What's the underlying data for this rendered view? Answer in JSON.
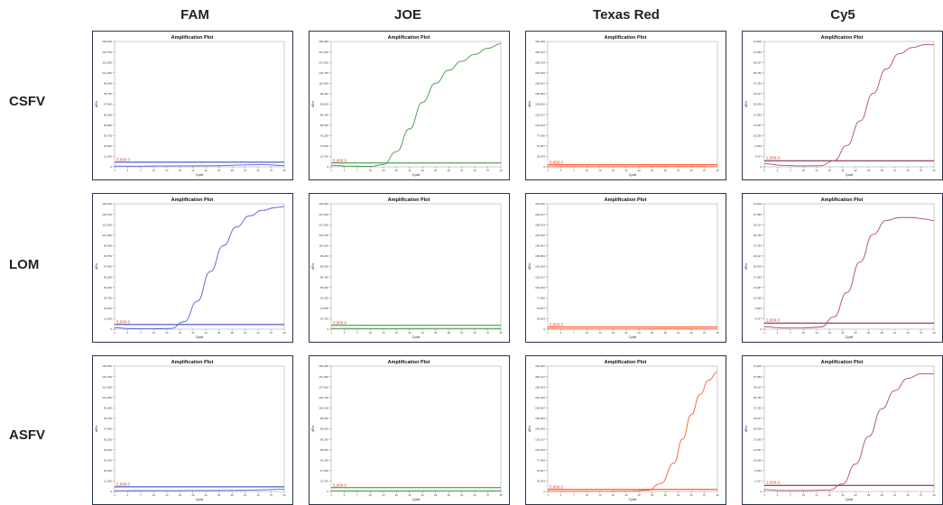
{
  "columns": [
    "FAM",
    "JOE",
    "Texas Red",
    "Cy5"
  ],
  "rows": [
    "CSFV",
    "LOM",
    "ASFV"
  ],
  "colors": {
    "FAM": "#5b5bd6",
    "JOE": "#3f9a3f",
    "Texas Red": "#ff5a36",
    "Cy5": "#b14a6a",
    "threshold_label": "#e03a1a",
    "baseline_blue": "#2233cc",
    "baseline_green": "#2e8b2e",
    "baseline_red": "#ff3300",
    "baseline_cy5": "#7a1030"
  },
  "chart_data": [
    {
      "type": "line",
      "title": "Amplification Plot",
      "row": "CSFV",
      "channel": "FAM",
      "xlabel": "Cycle",
      "ylabel": "ΔRn",
      "threshold_label": "5,000.0",
      "threshold": 5000,
      "ylim": [
        0,
        135000
      ],
      "amplified": false,
      "x": [
        1,
        5,
        10,
        15,
        20,
        25,
        30,
        35,
        40
      ],
      "y": [
        800,
        700,
        900,
        1000,
        1100,
        1200,
        2000,
        2400,
        1500
      ]
    },
    {
      "type": "line",
      "title": "Amplification Plot",
      "row": "CSFV",
      "channel": "JOE",
      "xlabel": "Cycle",
      "ylabel": "ΔRn",
      "threshold_label": "5,000.0",
      "threshold": 5000,
      "ylim": [
        0,
        165000
      ],
      "amplified": true,
      "x": [
        1,
        5,
        10,
        13,
        16,
        19,
        22,
        25,
        28,
        31,
        34,
        37,
        40
      ],
      "y": [
        2000,
        1000,
        500,
        3000,
        20000,
        50000,
        85000,
        110000,
        127000,
        139000,
        148000,
        156000,
        162000
      ]
    },
    {
      "type": "line",
      "title": "Amplification Plot",
      "row": "CSFV",
      "channel": "Texas Red",
      "xlabel": "Cycle",
      "ylabel": "ΔRn",
      "threshold_label": "5,000.0",
      "threshold": 5000,
      "ylim": [
        0,
        310000
      ],
      "amplified": false,
      "x": [
        1,
        10,
        20,
        30,
        40
      ],
      "y": [
        500,
        400,
        500,
        600,
        500
      ]
    },
    {
      "type": "line",
      "title": "Amplification Plot",
      "row": "CSFV",
      "channel": "Cy5",
      "xlabel": "Cycle",
      "ylabel": "ΔRn",
      "threshold_label": "2,000.0",
      "threshold": 2000,
      "ylim": [
        0,
        41000
      ],
      "amplified": true,
      "x": [
        1,
        5,
        10,
        14,
        17,
        20,
        23,
        26,
        29,
        32,
        35,
        38,
        40
      ],
      "y": [
        1000,
        500,
        300,
        400,
        2000,
        7000,
        15000,
        24000,
        32000,
        37000,
        39000,
        40000,
        40000
      ]
    },
    {
      "type": "line",
      "title": "Amplification Plot",
      "row": "LOM",
      "channel": "FAM",
      "xlabel": "Cycle",
      "ylabel": "ΔRn",
      "threshold_label": "5,000.0",
      "threshold": 5000,
      "ylim": [
        0,
        135000
      ],
      "amplified": true,
      "x": [
        1,
        5,
        10,
        14,
        17,
        20,
        23,
        26,
        29,
        32,
        35,
        38,
        40
      ],
      "y": [
        1500,
        600,
        400,
        800,
        8000,
        30000,
        62000,
        90000,
        110000,
        122000,
        128000,
        131000,
        132000
      ]
    },
    {
      "type": "line",
      "title": "Amplification Plot",
      "row": "LOM",
      "channel": "JOE",
      "xlabel": "Cycle",
      "ylabel": "ΔRn",
      "threshold_label": "5,000.0",
      "threshold": 5000,
      "ylim": [
        0,
        165000
      ],
      "amplified": false,
      "x": [
        1,
        10,
        20,
        30,
        40
      ],
      "y": [
        1000,
        800,
        900,
        1000,
        900
      ]
    },
    {
      "type": "line",
      "title": "Amplification Plot",
      "row": "LOM",
      "channel": "Texas Red",
      "xlabel": "Cycle",
      "ylabel": "ΔRn",
      "threshold_label": "5,000.0",
      "threshold": 5000,
      "ylim": [
        0,
        310000
      ],
      "amplified": false,
      "x": [
        1,
        10,
        20,
        30,
        40
      ],
      "y": [
        500,
        400,
        500,
        600,
        500
      ]
    },
    {
      "type": "line",
      "title": "Amplification Plot",
      "row": "LOM",
      "channel": "Cy5",
      "xlabel": "Cycle",
      "ylabel": "ΔRn",
      "threshold_label": "2,000.0",
      "threshold": 2000,
      "ylim": [
        0,
        41000
      ],
      "amplified": true,
      "x": [
        1,
        5,
        10,
        14,
        17,
        20,
        23,
        26,
        29,
        32,
        35,
        38,
        40
      ],
      "y": [
        800,
        400,
        400,
        700,
        4000,
        12000,
        22000,
        31000,
        35500,
        36500,
        36500,
        36000,
        35500
      ]
    },
    {
      "type": "line",
      "title": "Amplification Plot",
      "row": "ASFV",
      "channel": "FAM",
      "xlabel": "Cycle",
      "ylabel": "ΔRn",
      "threshold_label": "5,000.0",
      "threshold": 5000,
      "ylim": [
        0,
        135000
      ],
      "amplified": false,
      "x": [
        1,
        10,
        20,
        30,
        35,
        40
      ],
      "y": [
        800,
        900,
        1000,
        1200,
        1800,
        2500
      ]
    },
    {
      "type": "line",
      "title": "Amplification Plot",
      "row": "ASFV",
      "channel": "JOE",
      "xlabel": "Cycle",
      "ylabel": "ΔRn",
      "threshold_label": "5,000.0",
      "threshold": 5000,
      "ylim": [
        0,
        165000
      ],
      "amplified": false,
      "x": [
        1,
        10,
        20,
        30,
        40
      ],
      "y": [
        1000,
        800,
        900,
        1000,
        900
      ]
    },
    {
      "type": "line",
      "title": "Amplification Plot",
      "row": "ASFV",
      "channel": "Texas Red",
      "xlabel": "Cycle",
      "ylabel": "ΔRn",
      "threshold_label": "5,000.0",
      "threshold": 5000,
      "ylim": [
        0,
        310000
      ],
      "amplified": true,
      "x": [
        1,
        10,
        20,
        24,
        27,
        30,
        32,
        34,
        36,
        38,
        40
      ],
      "y": [
        500,
        400,
        600,
        3000,
        20000,
        70000,
        130000,
        190000,
        240000,
        275000,
        295000
      ]
    },
    {
      "type": "line",
      "title": "Amplification Plot",
      "row": "ASFV",
      "channel": "Cy5",
      "xlabel": "Cycle",
      "ylabel": "ΔRn",
      "threshold_label": "2,000.0",
      "threshold": 2000,
      "ylim": [
        0,
        41000
      ],
      "amplified": true,
      "x": [
        1,
        5,
        10,
        16,
        19,
        22,
        25,
        28,
        31,
        34,
        37,
        40
      ],
      "y": [
        600,
        300,
        300,
        500,
        2500,
        9000,
        18000,
        27000,
        33000,
        37000,
        38500,
        38500
      ]
    }
  ]
}
